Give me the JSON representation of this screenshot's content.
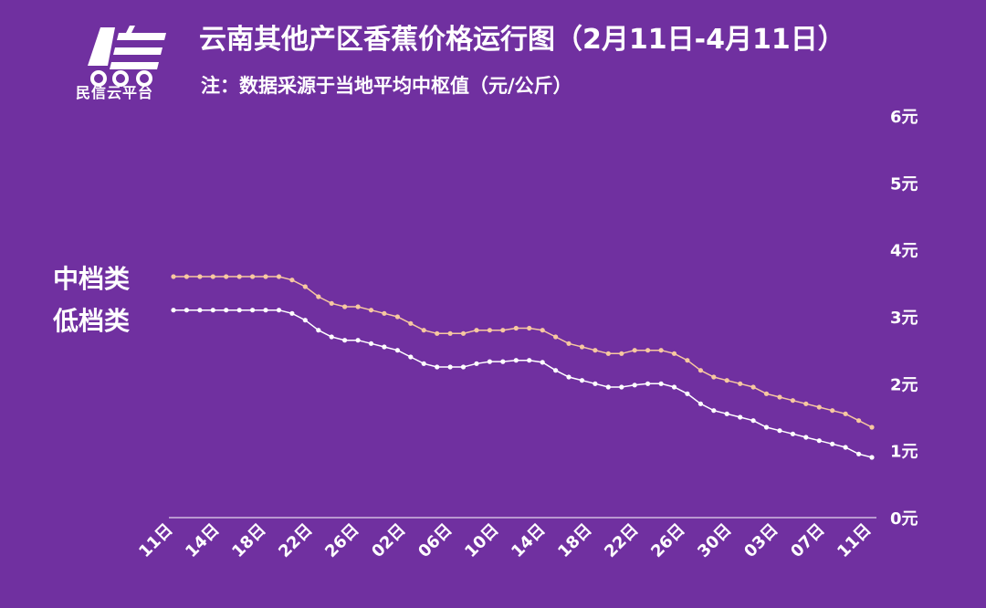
{
  "header": {
    "logo_text": "民信云平台",
    "title": "云南其他产区香蕉价格运行图（2月11日-4月11日）",
    "subtitle": "注：数据采源于当地平均中枢值（元/公斤）"
  },
  "colors": {
    "background": "#7030a0",
    "mid_series": "#f7c8a0",
    "low_series": "#ffffff",
    "axis": "#ffffff"
  },
  "chart_data": {
    "type": "line",
    "title": "云南其他产区香蕉价格运行图（2月11日-4月11日）",
    "ylabel": "元/公斤",
    "ylim": [
      0,
      6
    ],
    "yticks": [
      "0元",
      "1元",
      "2元",
      "3元",
      "4元",
      "5元",
      "6元"
    ],
    "xtick_labels": [
      "11日",
      "14日",
      "18日",
      "22日",
      "26日",
      "02日",
      "06日",
      "10日",
      "14日",
      "18日",
      "22日",
      "26日",
      "30日",
      "03日",
      "07日",
      "11日"
    ],
    "series": [
      {
        "name": "中档类",
        "values": [
          3.6,
          3.6,
          3.6,
          3.6,
          3.6,
          3.6,
          3.6,
          3.6,
          3.6,
          3.55,
          3.45,
          3.3,
          3.2,
          3.15,
          3.15,
          3.1,
          3.05,
          3.0,
          2.9,
          2.8,
          2.75,
          2.75,
          2.75,
          2.8,
          2.8,
          2.8,
          2.83,
          2.83,
          2.8,
          2.7,
          2.6,
          2.55,
          2.5,
          2.45,
          2.45,
          2.5,
          2.5,
          2.5,
          2.45,
          2.35,
          2.2,
          2.1,
          2.05,
          2.0,
          1.95,
          1.85,
          1.8,
          1.75,
          1.7,
          1.65,
          1.6,
          1.55,
          1.45,
          1.35
        ]
      },
      {
        "name": "低档类",
        "values": [
          3.1,
          3.1,
          3.1,
          3.1,
          3.1,
          3.1,
          3.1,
          3.1,
          3.1,
          3.05,
          2.95,
          2.8,
          2.7,
          2.65,
          2.65,
          2.6,
          2.55,
          2.5,
          2.4,
          2.3,
          2.25,
          2.25,
          2.25,
          2.3,
          2.33,
          2.33,
          2.35,
          2.35,
          2.32,
          2.2,
          2.1,
          2.05,
          2.0,
          1.95,
          1.95,
          1.98,
          2.0,
          2.0,
          1.95,
          1.85,
          1.7,
          1.6,
          1.55,
          1.5,
          1.45,
          1.35,
          1.3,
          1.25,
          1.2,
          1.15,
          1.1,
          1.05,
          0.95,
          0.9
        ]
      }
    ]
  }
}
